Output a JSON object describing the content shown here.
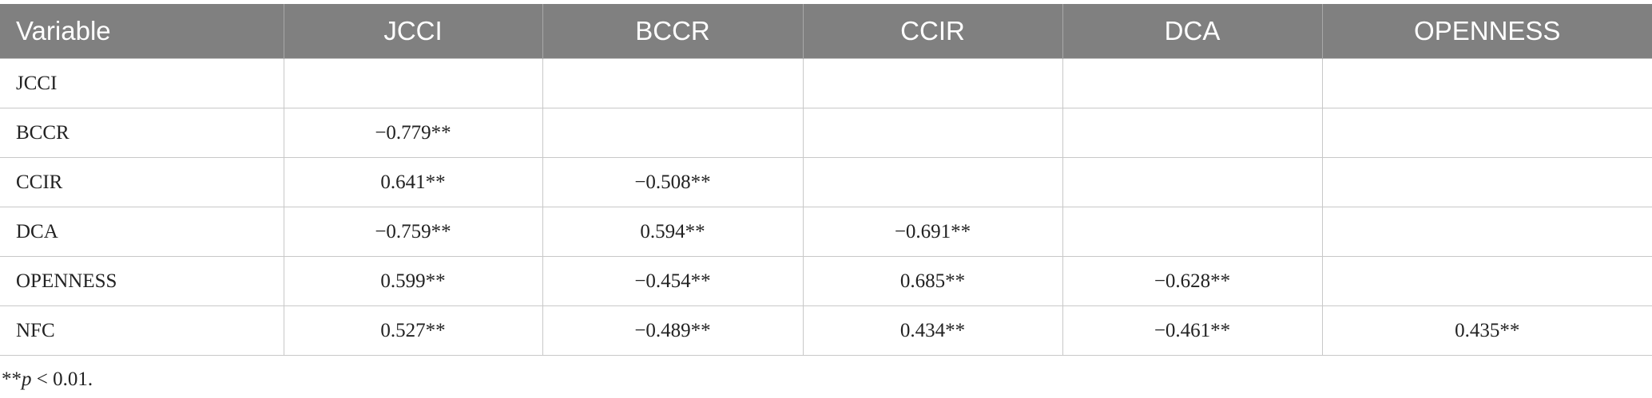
{
  "table": {
    "header": [
      "Variable",
      "JCCI",
      "BCCR",
      "CCIR",
      "DCA",
      "OPENNESS"
    ],
    "rows": [
      [
        "JCCI",
        null,
        null,
        null,
        null,
        null
      ],
      [
        "BCCR",
        "−0.779**",
        null,
        null,
        null,
        null
      ],
      [
        "CCIR",
        "0.641**",
        "−0.508**",
        null,
        null,
        null
      ],
      [
        "DCA",
        "−0.759**",
        "0.594**",
        "−0.691**",
        null,
        null
      ],
      [
        "OPENNESS",
        "0.599**",
        "−0.454**",
        "0.685**",
        "−0.628**",
        null
      ],
      [
        "NFC",
        "0.527**",
        "−0.489**",
        "0.434**",
        "−0.461**",
        "0.435**"
      ]
    ]
  },
  "footnote": {
    "marker": "**",
    "symbol": "p",
    "text": " < 0.01."
  }
}
